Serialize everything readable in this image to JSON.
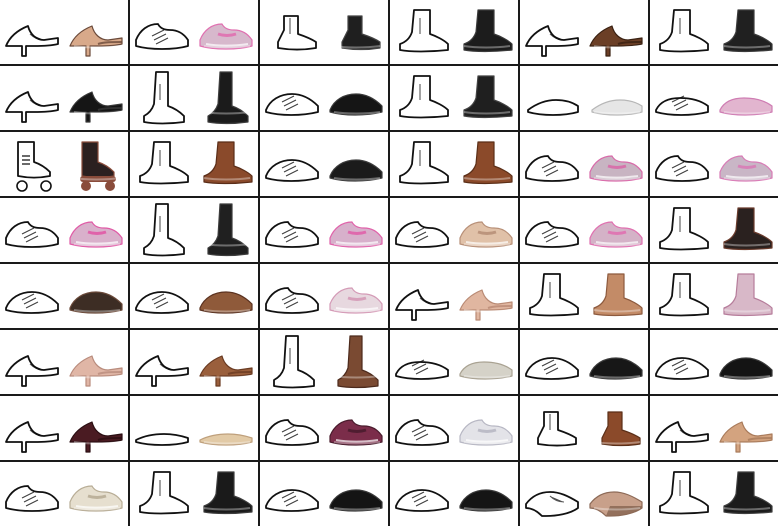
{
  "cells": [
    {
      "kind": "heel",
      "color": "#d8a98a",
      "accent": "#6b4a3a"
    },
    {
      "kind": "sneaker",
      "color": "#d7b8cc",
      "accent": "#e070b0"
    },
    {
      "kind": "bootie",
      "color": "#1f1f1f",
      "accent": "#444444"
    },
    {
      "kind": "boot",
      "color": "#1c1c1c",
      "accent": "#3a3a3a"
    },
    {
      "kind": "heel",
      "color": "#6b3f26",
      "accent": "#3a2112"
    },
    {
      "kind": "boot",
      "color": "#202020",
      "accent": "#3b3b3b"
    },
    {
      "kind": "heel",
      "color": "#151515",
      "accent": "#383838"
    },
    {
      "kind": "tallboot",
      "color": "#1b1b1b",
      "accent": "#3d3d3d"
    },
    {
      "kind": "shoe",
      "color": "#151515",
      "accent": "#3a3a3a"
    },
    {
      "kind": "boot",
      "color": "#1f1f1f",
      "accent": "#424242"
    },
    {
      "kind": "sandal",
      "color": "#e6e6e6",
      "accent": "#b7b7b7"
    },
    {
      "kind": "moccasin",
      "color": "#e2b5cf",
      "accent": "#cf7db3"
    },
    {
      "kind": "skate",
      "color": "#2b2020",
      "accent": "#8a4c3b"
    },
    {
      "kind": "boot",
      "color": "#8a4a2b",
      "accent": "#5a2d18"
    },
    {
      "kind": "shoe",
      "color": "#1b1b1b",
      "accent": "#3d3d3d"
    },
    {
      "kind": "boot",
      "color": "#8b4a2a",
      "accent": "#5b2f18"
    },
    {
      "kind": "sneaker",
      "color": "#c8b4c2",
      "accent": "#d86aa9"
    },
    {
      "kind": "sneaker",
      "color": "#c9b6c6",
      "accent": "#d87cb6"
    },
    {
      "kind": "sneaker",
      "color": "#d9b0cb",
      "accent": "#e05aa6"
    },
    {
      "kind": "tallboot",
      "color": "#202020",
      "accent": "#3c3c3c"
    },
    {
      "kind": "sneaker",
      "color": "#d7b0cb",
      "accent": "#e062aa"
    },
    {
      "kind": "sneaker",
      "color": "#e0c1a8",
      "accent": "#b89078"
    },
    {
      "kind": "sneaker",
      "color": "#d4b2c7",
      "accent": "#e070b0"
    },
    {
      "kind": "boot",
      "color": "#2a211f",
      "accent": "#6a3b2c"
    },
    {
      "kind": "shoe",
      "color": "#3d2d24",
      "accent": "#6b4a3a"
    },
    {
      "kind": "shoe",
      "color": "#8f5a3a",
      "accent": "#5b3220"
    },
    {
      "kind": "sneaker",
      "color": "#e7d8df",
      "accent": "#d49ab6"
    },
    {
      "kind": "heel",
      "color": "#e0b6a0",
      "accent": "#b98a74"
    },
    {
      "kind": "boot",
      "color": "#c38b67",
      "accent": "#8d5a3e"
    },
    {
      "kind": "boot",
      "color": "#d8b8c8",
      "accent": "#b67d9b"
    },
    {
      "kind": "heel",
      "color": "#e0b6a6",
      "accent": "#b98c7d"
    },
    {
      "kind": "heel",
      "color": "#9a5f3c",
      "accent": "#6a3b22"
    },
    {
      "kind": "tallboot",
      "color": "#7a4a32",
      "accent": "#4c2a1c"
    },
    {
      "kind": "moccasin",
      "color": "#d5d2c8",
      "accent": "#a9a292"
    },
    {
      "kind": "shoe",
      "color": "#171717",
      "accent": "#3c3c3c"
    },
    {
      "kind": "shoe",
      "color": "#141414",
      "accent": "#3a3a3a"
    },
    {
      "kind": "heel",
      "color": "#4a1b22",
      "accent": "#2a0e12"
    },
    {
      "kind": "flat",
      "color": "#e2caa6",
      "accent": "#bfa07c"
    },
    {
      "kind": "sneaker",
      "color": "#7b2d4a",
      "accent": "#4a1c2d"
    },
    {
      "kind": "sneaker",
      "color": "#e3e3e8",
      "accent": "#b7b7c3"
    },
    {
      "kind": "bootie",
      "color": "#8b4a2a",
      "accent": "#5b2f18"
    },
    {
      "kind": "heel",
      "color": "#d3a37f",
      "accent": "#a97b5b"
    },
    {
      "kind": "sneaker",
      "color": "#e6dfcf",
      "accent": "#b8ad96"
    },
    {
      "kind": "boot",
      "color": "#1a1a1a",
      "accent": "#3d3d3d"
    },
    {
      "kind": "shoe",
      "color": "#141414",
      "accent": "#3a3a3a"
    },
    {
      "kind": "shoe",
      "color": "#151515",
      "accent": "#3a3a3a"
    },
    {
      "kind": "wedge",
      "color": "#c8a08a",
      "accent": "#8d6a57"
    },
    {
      "kind": "boot",
      "color": "#1c1c1c",
      "accent": "#3f3f3f"
    }
  ]
}
